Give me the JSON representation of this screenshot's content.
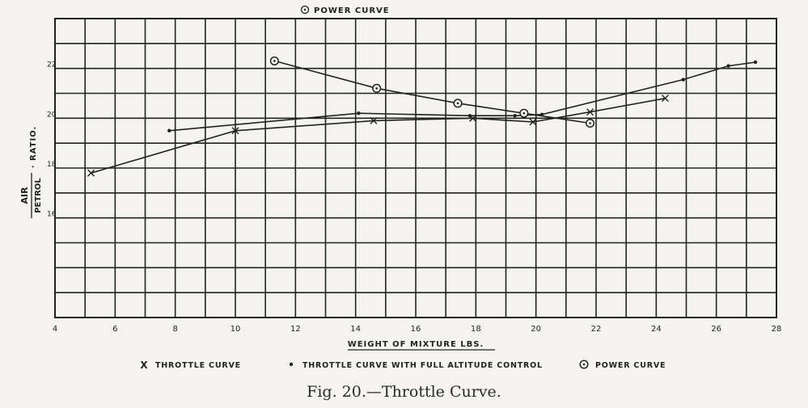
{
  "chart_data": {
    "type": "line",
    "top_label": "Power Curve",
    "xlabel": "Weight of Mixture Lbs.",
    "ylabel_numerator": "AIR",
    "ylabel_denominator": "PETROL",
    "ylabel_suffix": "· RATIO.",
    "xlim": [
      4,
      28
    ],
    "ylim": [
      12,
      24
    ],
    "x_ticks": [
      "4",
      "6",
      "8",
      "10",
      "12",
      "14",
      "16",
      "18",
      "20",
      "22",
      "24",
      "26",
      "28"
    ],
    "y_ticks": [
      {
        "value": 22,
        "label": "22"
      },
      {
        "value": 20,
        "label": "20"
      },
      {
        "value": 18,
        "label": "18"
      },
      {
        "value": 16,
        "label": "16"
      }
    ],
    "grid": true,
    "legend_position": "bottom",
    "series": [
      {
        "name": "Throttle Curve",
        "marker": "x",
        "points": [
          [
            5.2,
            17.8
          ],
          [
            10,
            19.5
          ],
          [
            14.6,
            19.9
          ],
          [
            17.9,
            20.0
          ],
          [
            19.9,
            19.85
          ],
          [
            21.8,
            20.25
          ],
          [
            24.3,
            20.8
          ]
        ]
      },
      {
        "name": "Throttle Curve with full Altitude Control",
        "marker": "dot",
        "points": [
          [
            7.8,
            19.5
          ],
          [
            14.1,
            20.2
          ],
          [
            17.8,
            20.1
          ],
          [
            19.3,
            20.1
          ],
          [
            20.2,
            20.15
          ],
          [
            24.9,
            21.55
          ],
          [
            26.4,
            22.1
          ],
          [
            27.3,
            22.25
          ]
        ]
      },
      {
        "name": "Power Curve",
        "marker": "circle",
        "points": [
          [
            11.3,
            22.3
          ],
          [
            14.7,
            21.2
          ],
          [
            17.4,
            20.6
          ],
          [
            19.6,
            20.2
          ],
          [
            21.8,
            19.8
          ]
        ]
      }
    ],
    "caption": "Fig. 20.—Throttle Curve."
  }
}
